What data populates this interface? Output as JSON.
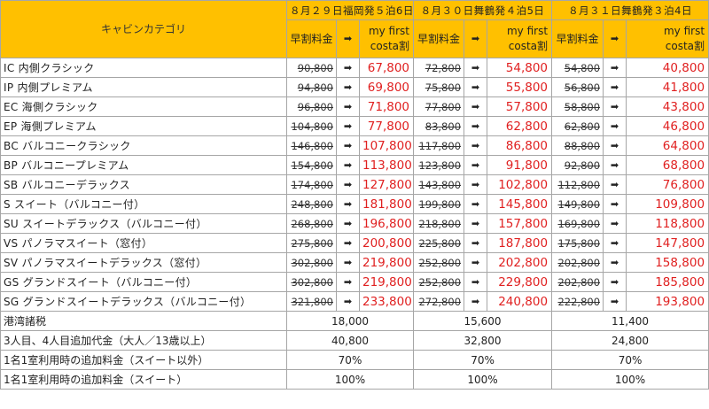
{
  "header": {
    "category_label": "キャビンカテゴリ",
    "voyages": [
      {
        "date": "８月２９日福岡発５泊6日"
      },
      {
        "date": "８月３０日舞鶴発４泊5日"
      },
      {
        "date": "８月３１日舞鶴発３泊4日"
      }
    ],
    "early_label": "早割料金",
    "arrow": "➡",
    "mfc_line1": "my first",
    "mfc_line2": "costa割"
  },
  "rows": [
    {
      "category": "IC 内側クラシック",
      "prices": [
        [
          "90,800",
          "67,800"
        ],
        [
          "72,800",
          "54,800"
        ],
        [
          "54,800",
          "40,800"
        ]
      ]
    },
    {
      "category": "IP 内側プレミアム",
      "prices": [
        [
          "94,800",
          "69,800"
        ],
        [
          "75,800",
          "55,800"
        ],
        [
          "56,800",
          "41,800"
        ]
      ]
    },
    {
      "category": "EC 海側クラシック",
      "prices": [
        [
          "96,800",
          "71,800"
        ],
        [
          "77,800",
          "57,800"
        ],
        [
          "58,800",
          "43,800"
        ]
      ]
    },
    {
      "category": "EP 海側プレミアム",
      "prices": [
        [
          "104,800",
          "77,800"
        ],
        [
          "83,800",
          "62,800"
        ],
        [
          "62,800",
          "46,800"
        ]
      ]
    },
    {
      "category": "BC バルコニークラシック",
      "prices": [
        [
          "146,800",
          "107,800"
        ],
        [
          "117,800",
          "86,800"
        ],
        [
          "88,800",
          "64,800"
        ]
      ]
    },
    {
      "category": "BP バルコニープレミアム",
      "prices": [
        [
          "154,800",
          "113,800"
        ],
        [
          "123,800",
          "91,800"
        ],
        [
          "92,800",
          "68,800"
        ]
      ]
    },
    {
      "category": "SB バルコニーデラックス",
      "prices": [
        [
          "174,800",
          "127,800"
        ],
        [
          "143,800",
          "102,800"
        ],
        [
          "112,800",
          "76,800"
        ]
      ]
    },
    {
      "category": "S スイート（バルコニー付）",
      "prices": [
        [
          "248,800",
          "181,800"
        ],
        [
          "199,800",
          "145,800"
        ],
        [
          "149,800",
          "109,800"
        ]
      ]
    },
    {
      "category": "SU スイートデラックス（バルコニー付）",
      "prices": [
        [
          "268,800",
          "196,800"
        ],
        [
          "218,800",
          "157,800"
        ],
        [
          "169,800",
          "118,800"
        ]
      ]
    },
    {
      "category": "VS パノラマスイート（窓付）",
      "prices": [
        [
          "275,800",
          "200,800"
        ],
        [
          "225,800",
          "187,800"
        ],
        [
          "175,800",
          "147,800"
        ]
      ]
    },
    {
      "category": "SV パノラマスイートデラックス（窓付）",
      "prices": [
        [
          "302,800",
          "219,800"
        ],
        [
          "252,800",
          "202,800"
        ],
        [
          "202,800",
          "158,800"
        ]
      ]
    },
    {
      "category": "GS グランドスイート（バルコニー付）",
      "prices": [
        [
          "302,800",
          "219,800"
        ],
        [
          "252,800",
          "229,800"
        ],
        [
          "202,800",
          "185,800"
        ]
      ]
    },
    {
      "category": "SG グランドスイートデラックス（バルコニー付）",
      "prices": [
        [
          "321,800",
          "233,800"
        ],
        [
          "272,800",
          "240,800"
        ],
        [
          "222,800",
          "193,800"
        ]
      ]
    }
  ],
  "footer": [
    {
      "label": "港湾諸税",
      "values": [
        "18,000",
        "15,600",
        "11,400"
      ]
    },
    {
      "label": "3人目、4人目追加代金（大人／13歳以上）",
      "values": [
        "40,800",
        "32,800",
        "24,800"
      ]
    },
    {
      "label": "1名1室利用時の追加料金（スイート以外）",
      "values": [
        "70%",
        "70%",
        "70%"
      ]
    },
    {
      "label": "1名1室利用時の追加料金（スイート）",
      "values": [
        "100%",
        "100%",
        "100%"
      ]
    }
  ]
}
